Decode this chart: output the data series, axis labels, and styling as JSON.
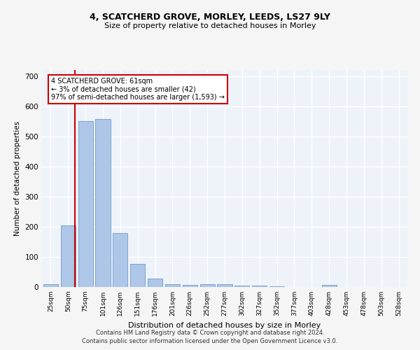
{
  "title": "4, SCATCHERD GROVE, MORLEY, LEEDS, LS27 9LY",
  "subtitle": "Size of property relative to detached houses in Morley",
  "xlabel": "Distribution of detached houses by size in Morley",
  "ylabel": "Number of detached properties",
  "categories": [
    "25sqm",
    "50sqm",
    "75sqm",
    "101sqm",
    "126sqm",
    "151sqm",
    "176sqm",
    "201sqm",
    "226sqm",
    "252sqm",
    "277sqm",
    "302sqm",
    "327sqm",
    "352sqm",
    "377sqm",
    "403sqm",
    "428sqm",
    "453sqm",
    "478sqm",
    "503sqm",
    "528sqm"
  ],
  "values": [
    10,
    205,
    550,
    558,
    178,
    77,
    28,
    10,
    7,
    10,
    10,
    5,
    5,
    3,
    0,
    0,
    8,
    0,
    0,
    0,
    0
  ],
  "bar_color": "#aec6e8",
  "bar_edge_color": "#5a8fc0",
  "property_line_x": 1.4,
  "annotation_text": "4 SCATCHERD GROVE: 61sqm\n← 3% of detached houses are smaller (42)\n97% of semi-detached houses are larger (1,593) →",
  "annotation_box_color": "#ffffff",
  "annotation_box_edge_color": "#cc0000",
  "vline_color": "#cc0000",
  "footer1": "Contains HM Land Registry data © Crown copyright and database right 2024.",
  "footer2": "Contains public sector information licensed under the Open Government Licence v3.0.",
  "bg_color": "#eef2f9",
  "grid_color": "#ffffff",
  "ylim": [
    0,
    720
  ],
  "yticks": [
    0,
    100,
    200,
    300,
    400,
    500,
    600,
    700
  ]
}
